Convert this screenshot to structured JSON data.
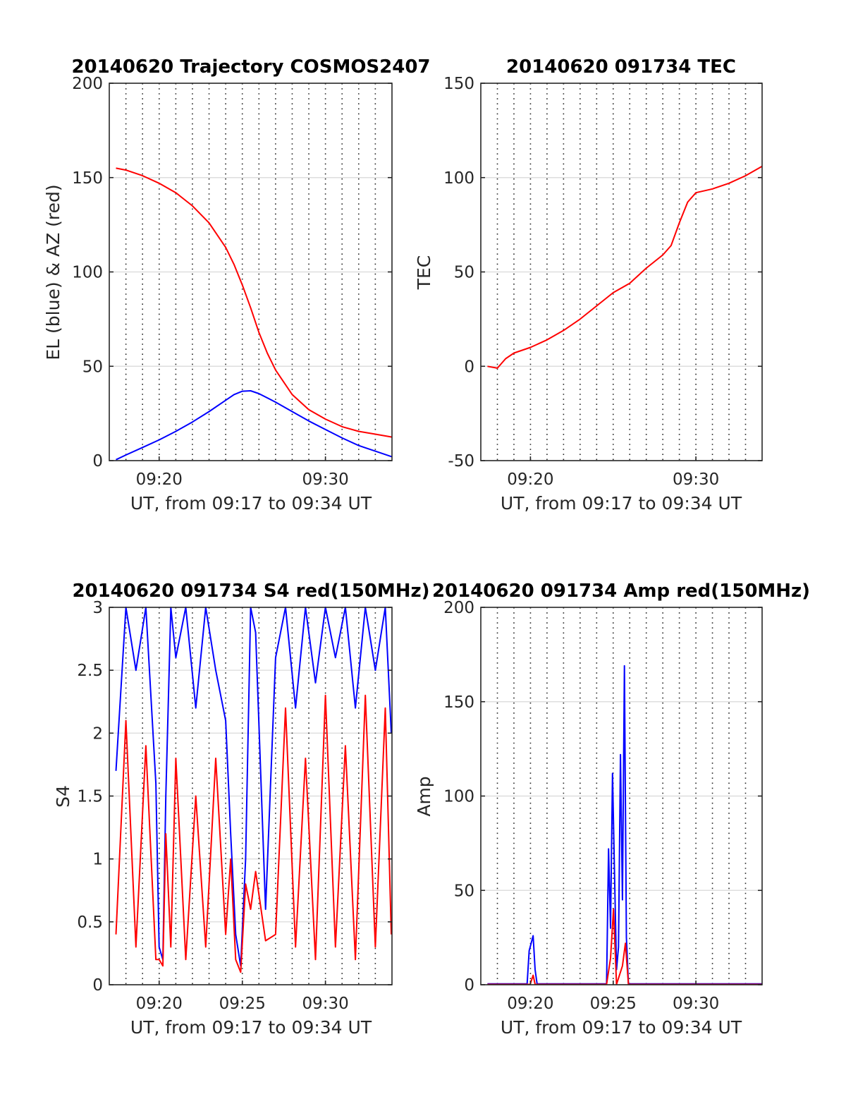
{
  "chart_data": [
    {
      "type": "line",
      "title": "20140620 Trajectory COSMOS2407",
      "xlabel": "UT, from 09:17 to 09:34 UT",
      "ylabel": "EL (blue) & AZ (red)",
      "xlim": [
        9.2833,
        9.5667
      ],
      "ylim": [
        0,
        200
      ],
      "yticks": [
        0,
        50,
        100,
        150,
        200
      ],
      "ytick_labels": [
        "0",
        "50",
        "100",
        "150",
        "200"
      ],
      "xticks": [
        9.3333,
        9.5
      ],
      "xtick_labels": [
        "09:20",
        "09:30"
      ],
      "x_dotted_grid_minutes": 1,
      "grid": true,
      "series": [
        {
          "color": "#ff0000",
          "x": [
            9.29,
            9.3,
            9.3167,
            9.3333,
            9.35,
            9.3667,
            9.3833,
            9.4,
            9.4083,
            9.4167,
            9.425,
            9.4333,
            9.4417,
            9.45,
            9.4667,
            9.4833,
            9.5,
            9.5167,
            9.5333,
            9.55,
            9.5667
          ],
          "y": [
            155,
            154,
            151,
            147,
            142,
            135,
            126,
            113,
            104,
            93,
            81,
            68,
            57,
            48,
            35,
            27,
            22,
            18,
            15.5,
            14,
            12.5
          ]
        },
        {
          "color": "#0000ff",
          "x": [
            9.29,
            9.3,
            9.3167,
            9.3333,
            9.35,
            9.3667,
            9.3833,
            9.4,
            9.4083,
            9.4167,
            9.425,
            9.4333,
            9.45,
            9.4667,
            9.4833,
            9.5,
            9.5167,
            9.5333,
            9.55,
            9.5667
          ],
          "y": [
            0.5,
            3,
            7,
            11,
            15.5,
            20.5,
            26,
            32,
            35,
            36.8,
            37,
            35.5,
            31,
            26,
            21,
            16.5,
            12,
            8,
            5,
            2
          ]
        }
      ]
    },
    {
      "type": "line",
      "title": "20140620 091734 TEC",
      "xlabel": "UT, from 09:17 to 09:34 UT",
      "ylabel": "TEC",
      "xlim": [
        9.2833,
        9.5667
      ],
      "ylim": [
        -50,
        150
      ],
      "yticks": [
        -50,
        0,
        50,
        100,
        150
      ],
      "ytick_labels": [
        "-50",
        "0",
        "50",
        "100",
        "150"
      ],
      "xticks": [
        9.3333,
        9.5
      ],
      "xtick_labels": [
        "09:20",
        "09:30"
      ],
      "x_dotted_grid_minutes": 1,
      "grid": true,
      "series": [
        {
          "color": "#ff0000",
          "x": [
            9.29,
            9.3,
            9.3083,
            9.3167,
            9.3333,
            9.35,
            9.3667,
            9.3833,
            9.4,
            9.4167,
            9.4333,
            9.45,
            9.4667,
            9.475,
            9.4833,
            9.4917,
            9.5,
            9.5167,
            9.5333,
            9.55,
            9.5667
          ],
          "y": [
            0,
            -1,
            4,
            7,
            10,
            14,
            19,
            25,
            32,
            39,
            44,
            52,
            59,
            64,
            76,
            87,
            92,
            94,
            97,
            101,
            106
          ]
        }
      ]
    },
    {
      "type": "line",
      "title": "20140620 091734 S4 red(150MHz)",
      "xlabel": "UT, from 09:17 to 09:34 UT",
      "ylabel": "S4",
      "xlim": [
        9.2833,
        9.5667
      ],
      "ylim": [
        0,
        3
      ],
      "yticks": [
        0,
        0.5,
        1,
        1.5,
        2,
        2.5,
        3
      ],
      "ytick_labels": [
        "0",
        "0.5",
        "1",
        "1.5",
        "2",
        "2.5",
        "3"
      ],
      "xticks": [
        9.3333,
        9.4167,
        9.5
      ],
      "xtick_labels": [
        "09:20",
        "09:25",
        "09:30"
      ],
      "x_dotted_grid_minutes": 1,
      "grid": true,
      "series": [
        {
          "color": "#0000ff",
          "x": [
            9.29,
            9.3,
            9.31,
            9.32,
            9.33,
            9.3333,
            9.337,
            9.34,
            9.345,
            9.35,
            9.36,
            9.37,
            9.38,
            9.39,
            9.4,
            9.405,
            9.41,
            9.415,
            9.42,
            9.425,
            9.43,
            9.44,
            9.45,
            9.46,
            9.47,
            9.48,
            9.49,
            9.5,
            9.51,
            9.52,
            9.53,
            9.54,
            9.55,
            9.56,
            9.566
          ],
          "y": [
            1.7,
            3,
            2.5,
            3,
            1.6,
            0.3,
            0.2,
            1.5,
            3,
            2.6,
            3,
            2.2,
            3,
            2.5,
            2.1,
            1.2,
            0.4,
            0.15,
            1.0,
            3,
            2.8,
            0.6,
            2.6,
            3,
            2.2,
            3,
            2.4,
            3,
            2.6,
            3,
            2.2,
            3,
            2.5,
            3,
            2.0
          ]
        },
        {
          "color": "#ff0000",
          "x": [
            9.29,
            9.3,
            9.31,
            9.32,
            9.33,
            9.3333,
            9.337,
            9.34,
            9.345,
            9.35,
            9.36,
            9.37,
            9.38,
            9.39,
            9.4,
            9.405,
            9.41,
            9.415,
            9.42,
            9.425,
            9.43,
            9.44,
            9.45,
            9.46,
            9.47,
            9.48,
            9.49,
            9.5,
            9.51,
            9.52,
            9.53,
            9.54,
            9.55,
            9.56,
            9.566
          ],
          "y": [
            0.4,
            2.1,
            0.3,
            1.9,
            0.2,
            0.2,
            0.15,
            1.2,
            0.3,
            1.8,
            0.2,
            1.5,
            0.3,
            1.8,
            0.4,
            1.0,
            0.2,
            0.1,
            0.8,
            0.6,
            0.9,
            0.35,
            0.4,
            2.2,
            0.3,
            1.8,
            0.2,
            2.3,
            0.3,
            1.9,
            0.2,
            2.3,
            0.3,
            2.2,
            0.4
          ]
        }
      ]
    },
    {
      "type": "line",
      "title": "20140620 091734 Amp red(150MHz)",
      "xlabel": "UT, from 09:17 to 09:34 UT",
      "ylabel": "Amp",
      "xlim": [
        9.2833,
        9.5667
      ],
      "ylim": [
        0,
        200
      ],
      "yticks": [
        0,
        50,
        100,
        150,
        200
      ],
      "ytick_labels": [
        "0",
        "50",
        "100",
        "150",
        "200"
      ],
      "xticks": [
        9.3333,
        9.4167,
        9.5
      ],
      "xtick_labels": [
        "09:20",
        "09:25",
        "09:30"
      ],
      "x_dotted_grid_minutes": 1,
      "grid": true,
      "series": [
        {
          "color": "#0000ff",
          "x": [
            9.29,
            9.33,
            9.332,
            9.334,
            9.336,
            9.338,
            9.34,
            9.41,
            9.412,
            9.414,
            9.416,
            9.418,
            9.42,
            9.422,
            9.424,
            9.426,
            9.428,
            9.43,
            9.432,
            9.434,
            9.436,
            9.438,
            9.44,
            9.5,
            9.5667
          ],
          "y": [
            0.5,
            0.5,
            18,
            22,
            26,
            8,
            0.5,
            0.5,
            72,
            30,
            112,
            60,
            8,
            20,
            122,
            45,
            169,
            25,
            0.5,
            0.5,
            0.5,
            0.5,
            0.5,
            0.5,
            0.5
          ]
        },
        {
          "color": "#ff0000",
          "x": [
            9.29,
            9.333,
            9.336,
            9.338,
            9.41,
            9.414,
            9.417,
            9.42,
            9.426,
            9.429,
            9.432,
            9.5667
          ],
          "y": [
            0.2,
            0.2,
            5,
            0.2,
            0.2,
            14,
            40,
            0.2,
            10,
            22,
            0.2,
            0.2
          ]
        }
      ]
    }
  ]
}
